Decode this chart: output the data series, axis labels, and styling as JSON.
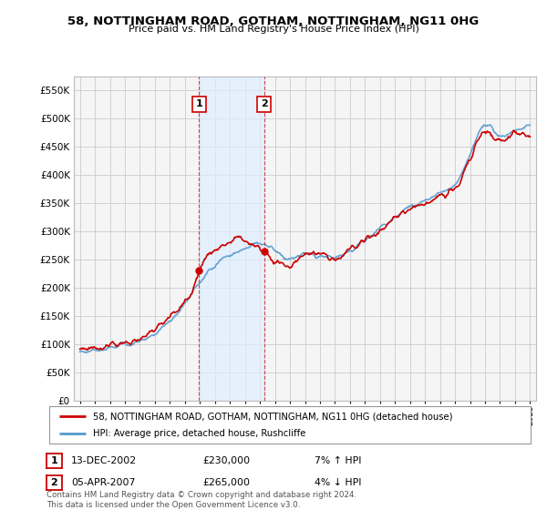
{
  "title": "58, NOTTINGHAM ROAD, GOTHAM, NOTTINGHAM, NG11 0HG",
  "subtitle": "Price paid vs. HM Land Registry's House Price Index (HPI)",
  "legend_line1": "58, NOTTINGHAM ROAD, GOTHAM, NOTTINGHAM, NG11 0HG (detached house)",
  "legend_line2": "HPI: Average price, detached house, Rushcliffe",
  "transaction1_label": "1",
  "transaction1_date": "13-DEC-2002",
  "transaction1_price": "£230,000",
  "transaction1_hpi": "7% ↑ HPI",
  "transaction2_label": "2",
  "transaction2_date": "05-APR-2007",
  "transaction2_price": "£265,000",
  "transaction2_hpi": "4% ↓ HPI",
  "footer": "Contains HM Land Registry data © Crown copyright and database right 2024.\nThis data is licensed under the Open Government Licence v3.0.",
  "property_color": "#cc0000",
  "hpi_color": "#5599cc",
  "hpi_fill_color": "#ddeeff",
  "background_color": "#ffffff",
  "plot_bg_color": "#f5f5f5",
  "grid_color": "#cccccc",
  "ylim": [
    0,
    575000
  ],
  "yticks": [
    0,
    50000,
    100000,
    150000,
    200000,
    250000,
    300000,
    350000,
    400000,
    450000,
    500000,
    550000
  ],
  "transaction1_x": 2002.95,
  "transaction2_x": 2007.27,
  "transaction1_y": 230000,
  "transaction2_y": 265000,
  "xmin": 1994.6,
  "xmax": 2025.4
}
